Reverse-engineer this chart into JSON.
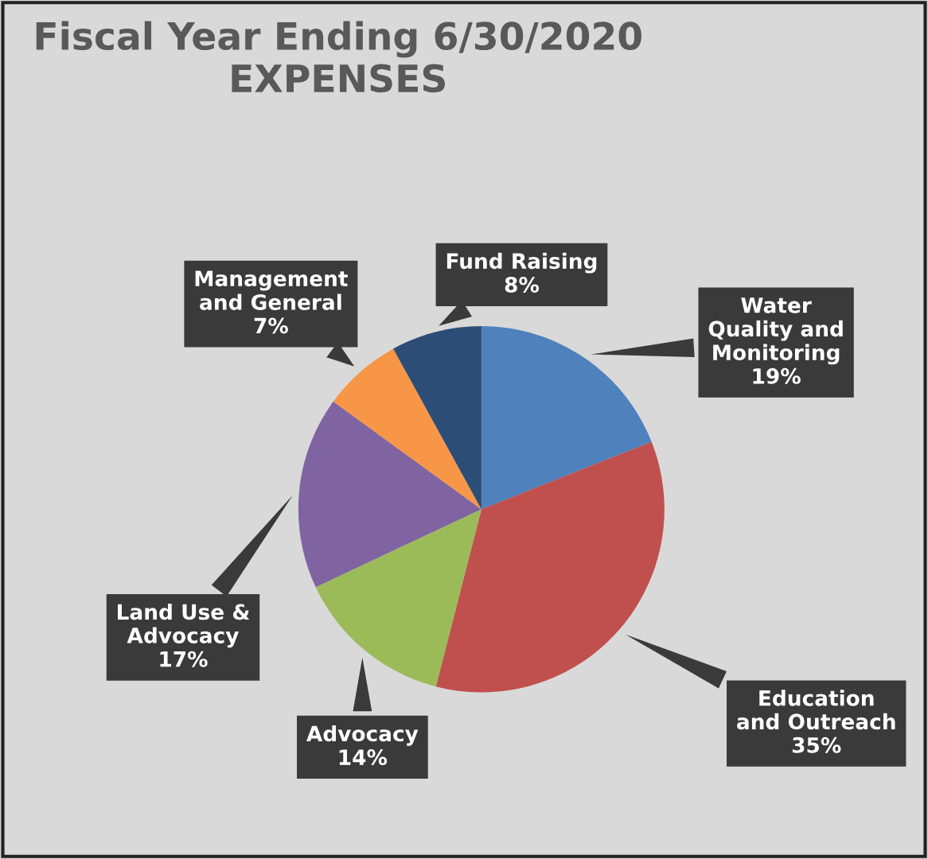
{
  "chart_data": {
    "type": "pie",
    "title": "Fiscal Year Ending 6/30/2020\nEXPENSES",
    "categories": [
      "Water\nQuality and\nMonitoring",
      "Education\nand Outreach",
      "Advocacy",
      "Land Use &\nAdvocacy",
      "Management\nand General",
      "Fund Raising"
    ],
    "values": [
      19,
      35,
      14,
      17,
      7,
      8
    ],
    "value_labels": [
      "19%",
      "35%",
      "14%",
      "17%",
      "7%",
      "8%"
    ],
    "colors": [
      "#4f81bd",
      "#c0504d",
      "#9bbb59",
      "#8064a2",
      "#f79646",
      "#2c4d75"
    ],
    "legend": false
  }
}
